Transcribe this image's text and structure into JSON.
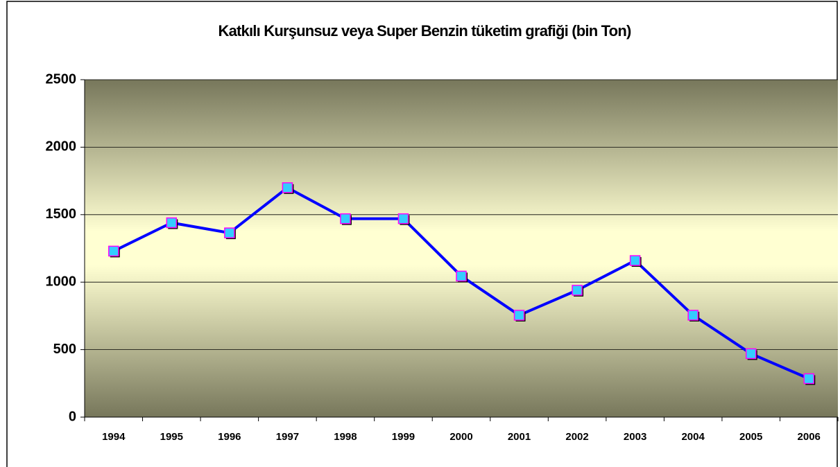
{
  "chart_data": {
    "type": "line",
    "title": "Katkılı Kurşunsuz veya Super Benzin tüketim grafiği (bin Ton)",
    "categories": [
      "1994",
      "1995",
      "1996",
      "1997",
      "1998",
      "1999",
      "2000",
      "2001",
      "2002",
      "2003",
      "2004",
      "2005",
      "2006"
    ],
    "values": [
      1230,
      1440,
      1365,
      1700,
      1470,
      1470,
      1045,
      755,
      940,
      1160,
      755,
      470,
      285
    ],
    "color": "#0000ff",
    "marker_color": "#33ccff",
    "marker_edge": "#ff00ff",
    "ylim": [
      0,
      2500
    ],
    "yticks": [
      0,
      500,
      1000,
      1500,
      2000,
      2500
    ],
    "grid": true
  }
}
